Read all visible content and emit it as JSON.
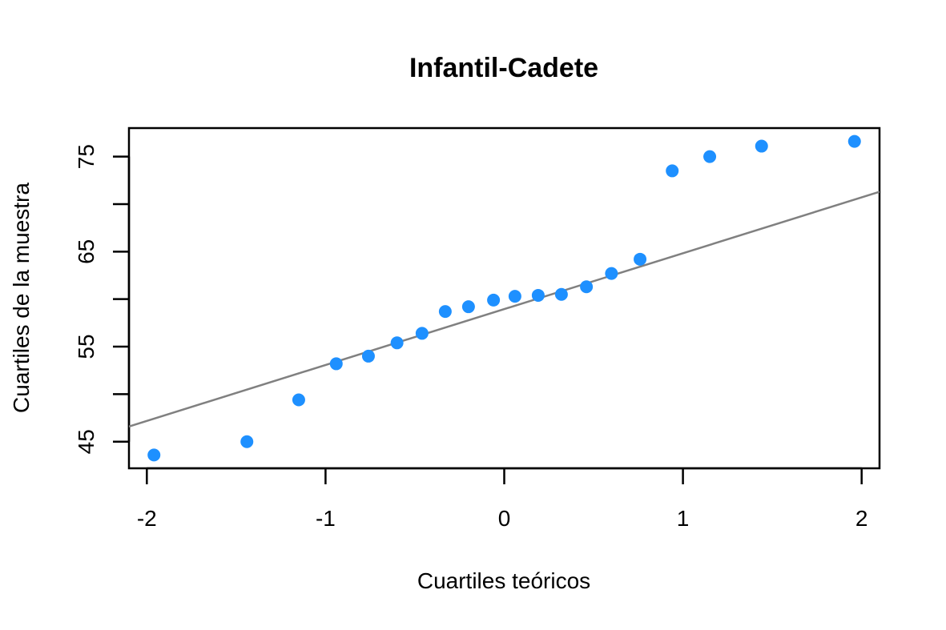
{
  "chart_data": {
    "type": "scatter",
    "subtype": "normal-qq-plot",
    "title": "Infantil-Cadete",
    "xlabel": "Cuartiles teóricos",
    "ylabel": "Cuartiles de la muestra",
    "xlim": [
      -2.1,
      2.1
    ],
    "ylim": [
      42.2,
      78.0
    ],
    "x_ticks": [
      -2,
      -1,
      0,
      1,
      2
    ],
    "x_tick_labels": [
      "-2",
      "-1",
      "0",
      "1",
      "2"
    ],
    "y_ticks": [
      45,
      50,
      55,
      60,
      65,
      70,
      75
    ],
    "y_tick_labels": [
      "45",
      "",
      "55",
      "",
      "65",
      "",
      "75"
    ],
    "grid": false,
    "points": {
      "x": [
        -1.96,
        -1.44,
        -1.15,
        -0.94,
        -0.76,
        -0.6,
        -0.46,
        -0.33,
        -0.2,
        -0.06,
        0.06,
        0.19,
        0.32,
        0.46,
        0.6,
        0.76,
        0.94,
        1.15,
        1.44,
        1.96
      ],
      "y": [
        43.6,
        45.0,
        49.4,
        53.2,
        54.0,
        55.4,
        56.4,
        58.7,
        59.2,
        59.9,
        60.3,
        60.4,
        60.5,
        61.3,
        62.7,
        64.2,
        73.5,
        75.0,
        76.1,
        76.6
      ]
    },
    "reference_line": {
      "x1": -2.1,
      "y1": 46.6,
      "x2": 2.1,
      "y2": 71.3
    },
    "colors": {
      "points": "#1E90FF",
      "line": "#808080",
      "axes": "#000000"
    }
  }
}
